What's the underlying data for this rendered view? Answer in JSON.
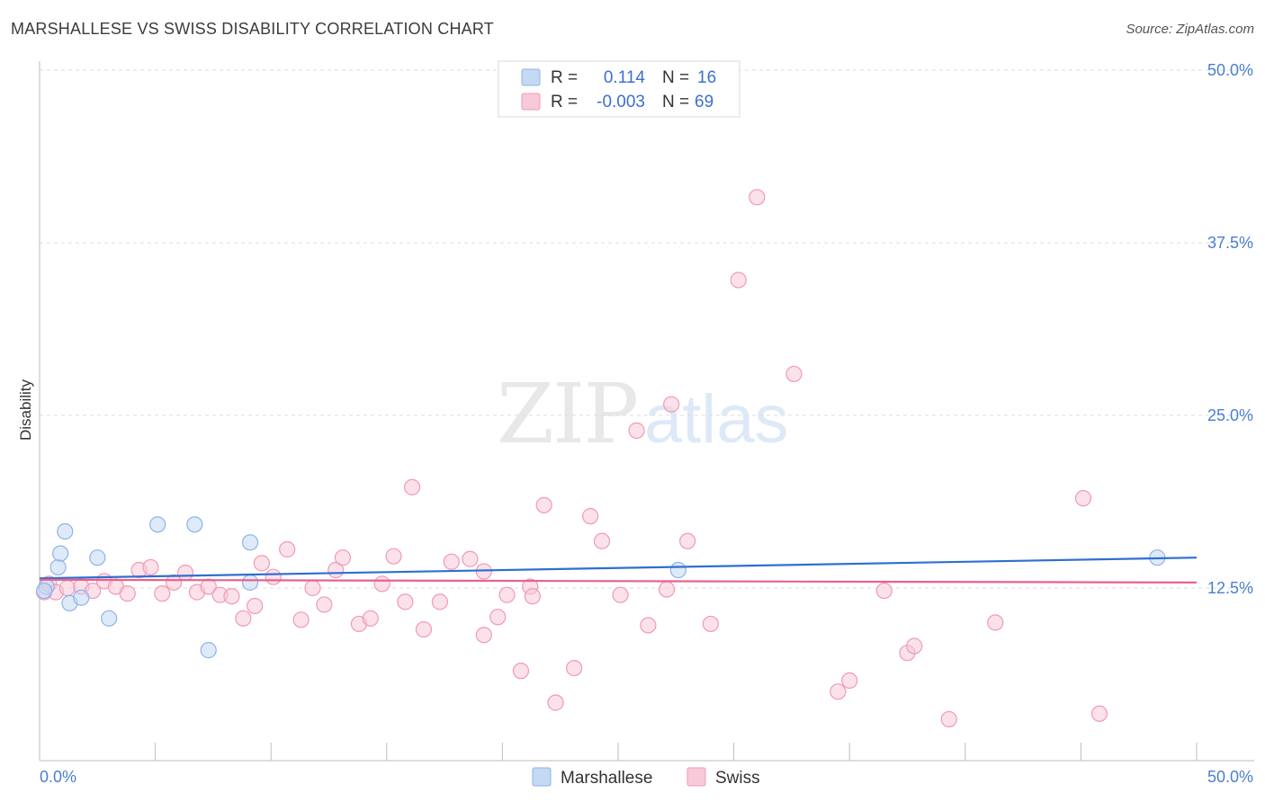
{
  "chart_data": {
    "type": "scatter",
    "title": "MARSHALLESE VS SWISS DISABILITY CORRELATION CHART",
    "source": "Source: ZipAtlas.com",
    "xlabel": "",
    "ylabel": "Disability",
    "xlim": [
      0,
      50
    ],
    "ylim": [
      0,
      50
    ],
    "x_tick_labels": [
      "0.0%",
      "50.0%"
    ],
    "y_ticks": [
      12.5,
      25.0,
      37.5,
      50.0
    ],
    "y_tick_labels": [
      "12.5%",
      "25.0%",
      "37.5%",
      "50.0%"
    ],
    "grid": true,
    "watermark": "ZIPatlas",
    "legend": {
      "entries": [
        {
          "name": "Marshallese",
          "r_label": "R =",
          "r_value": "0.114",
          "n_label": "N =",
          "n_value": "16"
        },
        {
          "name": "Swiss",
          "r_label": "R =",
          "r_value": "-0.003",
          "n_label": "N =",
          "n_value": "69"
        }
      ]
    },
    "series": [
      {
        "name": "Marshallese",
        "color": "#8db4e8",
        "fill": "#c5d9f3",
        "trend": {
          "color": "#2e6fd0",
          "x": [
            0,
            50
          ],
          "y": [
            13.2,
            14.7
          ]
        },
        "points": [
          [
            0.3,
            12.6
          ],
          [
            0.8,
            14.0
          ],
          [
            0.9,
            15.0
          ],
          [
            1.1,
            16.6
          ],
          [
            1.3,
            11.4
          ],
          [
            1.8,
            11.8
          ],
          [
            2.5,
            14.7
          ],
          [
            3.0,
            10.3
          ],
          [
            5.1,
            17.1
          ],
          [
            6.7,
            17.1
          ],
          [
            7.3,
            8.0
          ],
          [
            9.1,
            12.9
          ],
          [
            9.1,
            15.8
          ],
          [
            27.6,
            13.8
          ],
          [
            48.3,
            14.7
          ],
          [
            0.2,
            12.3
          ]
        ]
      },
      {
        "name": "Swiss",
        "color": "#f09ab7",
        "fill": "#f8c9d8",
        "trend": {
          "color": "#e8628f",
          "x": [
            0,
            50
          ],
          "y": [
            13.1,
            12.9
          ]
        },
        "points": [
          [
            0.2,
            12.2
          ],
          [
            0.4,
            12.8
          ],
          [
            0.7,
            12.2
          ],
          [
            1.2,
            12.5
          ],
          [
            1.8,
            12.6
          ],
          [
            2.3,
            12.3
          ],
          [
            2.8,
            13.0
          ],
          [
            3.3,
            12.6
          ],
          [
            3.8,
            12.1
          ],
          [
            4.3,
            13.8
          ],
          [
            4.8,
            14.0
          ],
          [
            5.3,
            12.1
          ],
          [
            5.8,
            12.9
          ],
          [
            6.3,
            13.6
          ],
          [
            6.8,
            12.2
          ],
          [
            7.3,
            12.6
          ],
          [
            7.8,
            12.0
          ],
          [
            8.3,
            11.9
          ],
          [
            8.8,
            10.3
          ],
          [
            9.3,
            11.2
          ],
          [
            9.6,
            14.3
          ],
          [
            10.1,
            13.3
          ],
          [
            10.7,
            15.3
          ],
          [
            11.3,
            10.2
          ],
          [
            11.8,
            12.5
          ],
          [
            12.3,
            11.3
          ],
          [
            12.8,
            13.8
          ],
          [
            13.1,
            14.7
          ],
          [
            13.8,
            9.9
          ],
          [
            14.3,
            10.3
          ],
          [
            14.8,
            12.8
          ],
          [
            15.3,
            14.8
          ],
          [
            15.8,
            11.5
          ],
          [
            16.1,
            19.8
          ],
          [
            16.6,
            9.5
          ],
          [
            17.3,
            11.5
          ],
          [
            17.8,
            14.4
          ],
          [
            18.6,
            14.6
          ],
          [
            19.2,
            13.7
          ],
          [
            19.2,
            9.1
          ],
          [
            19.8,
            10.4
          ],
          [
            20.2,
            12.0
          ],
          [
            20.8,
            6.5
          ],
          [
            21.2,
            12.6
          ],
          [
            21.3,
            11.9
          ],
          [
            21.8,
            18.5
          ],
          [
            22.3,
            4.2
          ],
          [
            23.1,
            6.7
          ],
          [
            23.8,
            17.7
          ],
          [
            24.3,
            15.9
          ],
          [
            25.1,
            12.0
          ],
          [
            25.8,
            23.9
          ],
          [
            26.3,
            9.8
          ],
          [
            27.1,
            12.4
          ],
          [
            27.3,
            25.8
          ],
          [
            28.0,
            15.9
          ],
          [
            29.0,
            9.9
          ],
          [
            30.2,
            34.8
          ],
          [
            31.0,
            40.8
          ],
          [
            32.6,
            28.0
          ],
          [
            34.5,
            5.0
          ],
          [
            35.0,
            5.8
          ],
          [
            36.5,
            12.3
          ],
          [
            37.5,
            7.8
          ],
          [
            37.8,
            8.3
          ],
          [
            39.3,
            3.0
          ],
          [
            41.3,
            10.0
          ],
          [
            45.1,
            19.0
          ],
          [
            45.8,
            3.4
          ]
        ]
      }
    ]
  }
}
